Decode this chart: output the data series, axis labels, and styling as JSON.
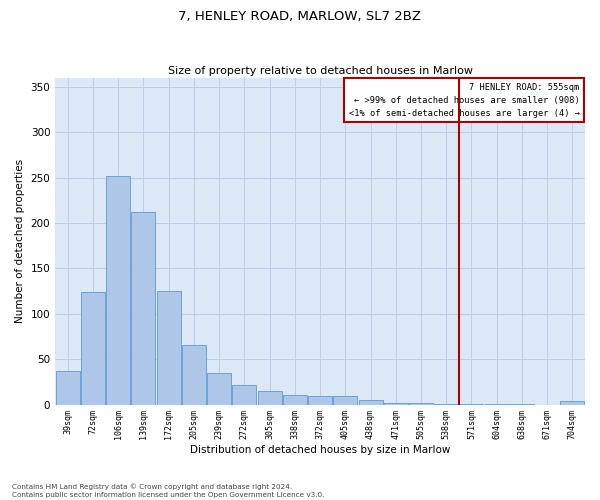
{
  "title": "7, HENLEY ROAD, MARLOW, SL7 2BZ",
  "subtitle": "Size of property relative to detached houses in Marlow",
  "xlabel": "Distribution of detached houses by size in Marlow",
  "ylabel": "Number of detached properties",
  "bar_labels": [
    "39sqm",
    "72sqm",
    "106sqm",
    "139sqm",
    "172sqm",
    "205sqm",
    "239sqm",
    "272sqm",
    "305sqm",
    "338sqm",
    "372sqm",
    "405sqm",
    "438sqm",
    "471sqm",
    "505sqm",
    "538sqm",
    "571sqm",
    "604sqm",
    "638sqm",
    "671sqm",
    "704sqm"
  ],
  "bar_values": [
    37,
    124,
    252,
    212,
    125,
    66,
    35,
    22,
    15,
    11,
    10,
    10,
    5,
    2,
    2,
    1,
    1,
    1,
    1,
    0,
    4
  ],
  "bar_color": "#aec6e8",
  "bar_edgecolor": "#5b9bd5",
  "vline_index": 16,
  "vline_color": "#aa0000",
  "annotation_title": "7 HENLEY ROAD: 555sqm",
  "annotation_line1": "← >99% of detached houses are smaller (908)",
  "annotation_line2": "<1% of semi-detached houses are larger (4) →",
  "annotation_box_color": "#aa0000",
  "ylim": [
    0,
    360
  ],
  "yticks": [
    0,
    50,
    100,
    150,
    200,
    250,
    300,
    350
  ],
  "footer_line1": "Contains HM Land Registry data © Crown copyright and database right 2024.",
  "footer_line2": "Contains public sector information licensed under the Open Government Licence v3.0.",
  "bg_color": "#ffffff",
  "axes_bg_color": "#dce8f5",
  "grid_color": "#b8cfe8"
}
